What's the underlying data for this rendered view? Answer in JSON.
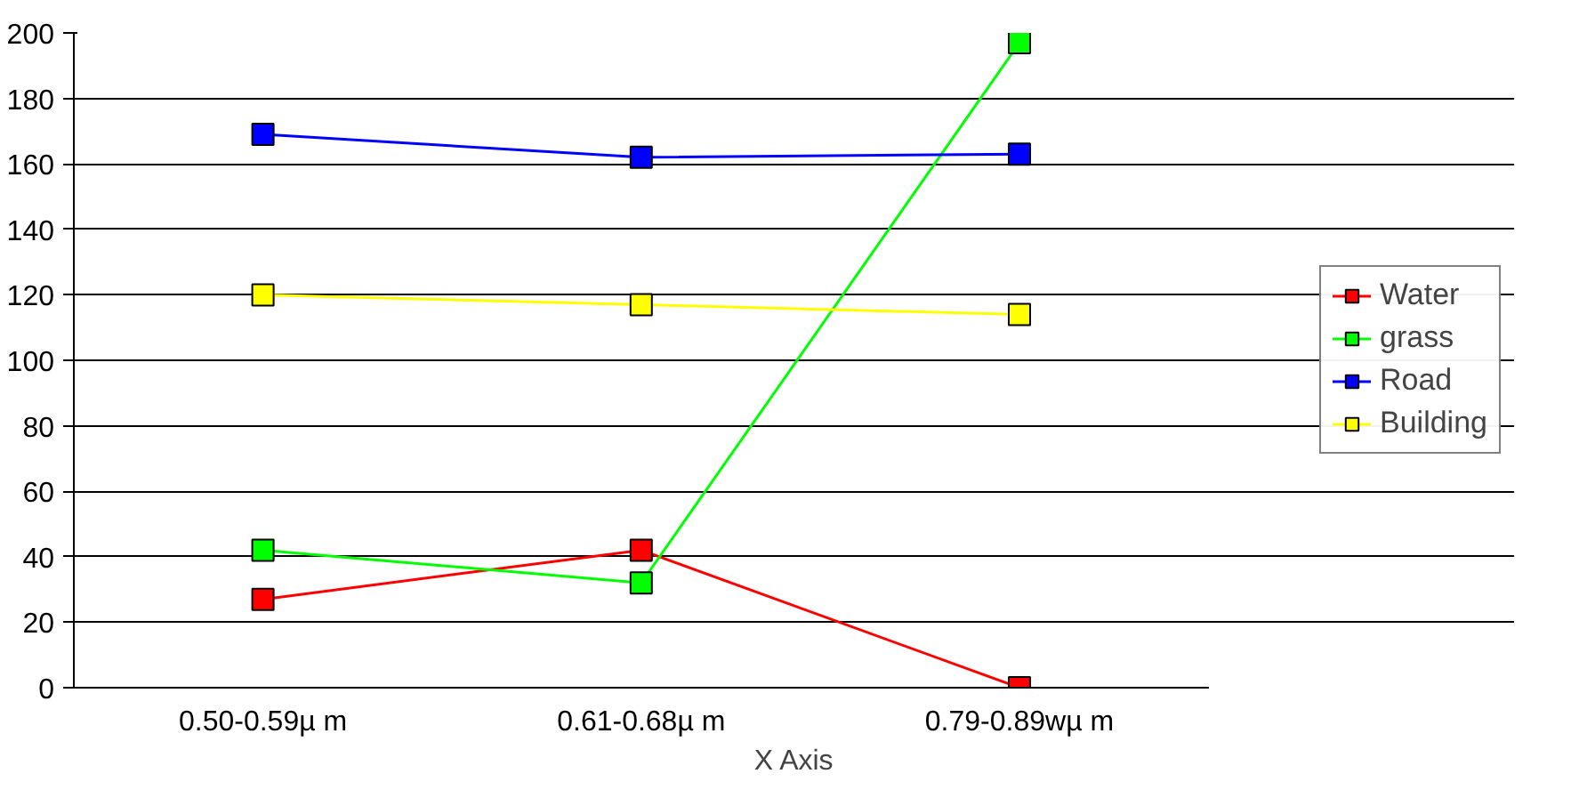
{
  "chart_data": {
    "type": "line",
    "xlabel": "X Axis",
    "categories": [
      "0.50-0.59µ m",
      "0.61-0.68µ m",
      "0.79-0.89wµ m"
    ],
    "series": [
      {
        "name": "Water",
        "color": "#ff0000",
        "values": [
          27,
          42,
          0
        ]
      },
      {
        "name": "grass",
        "color": "#00ff00",
        "values": [
          42,
          32,
          197
        ]
      },
      {
        "name": "Road",
        "color": "#0000ff",
        "values": [
          169,
          162,
          163
        ]
      },
      {
        "name": "Building",
        "color": "#ffff00",
        "values": [
          120,
          117,
          114
        ]
      }
    ],
    "ylim": [
      0,
      200
    ],
    "yticks": [
      0,
      20,
      40,
      60,
      80,
      100,
      120,
      140,
      160,
      180,
      200
    ],
    "grid": "y",
    "legend": "right",
    "marker": "square",
    "line_style": "solid"
  }
}
